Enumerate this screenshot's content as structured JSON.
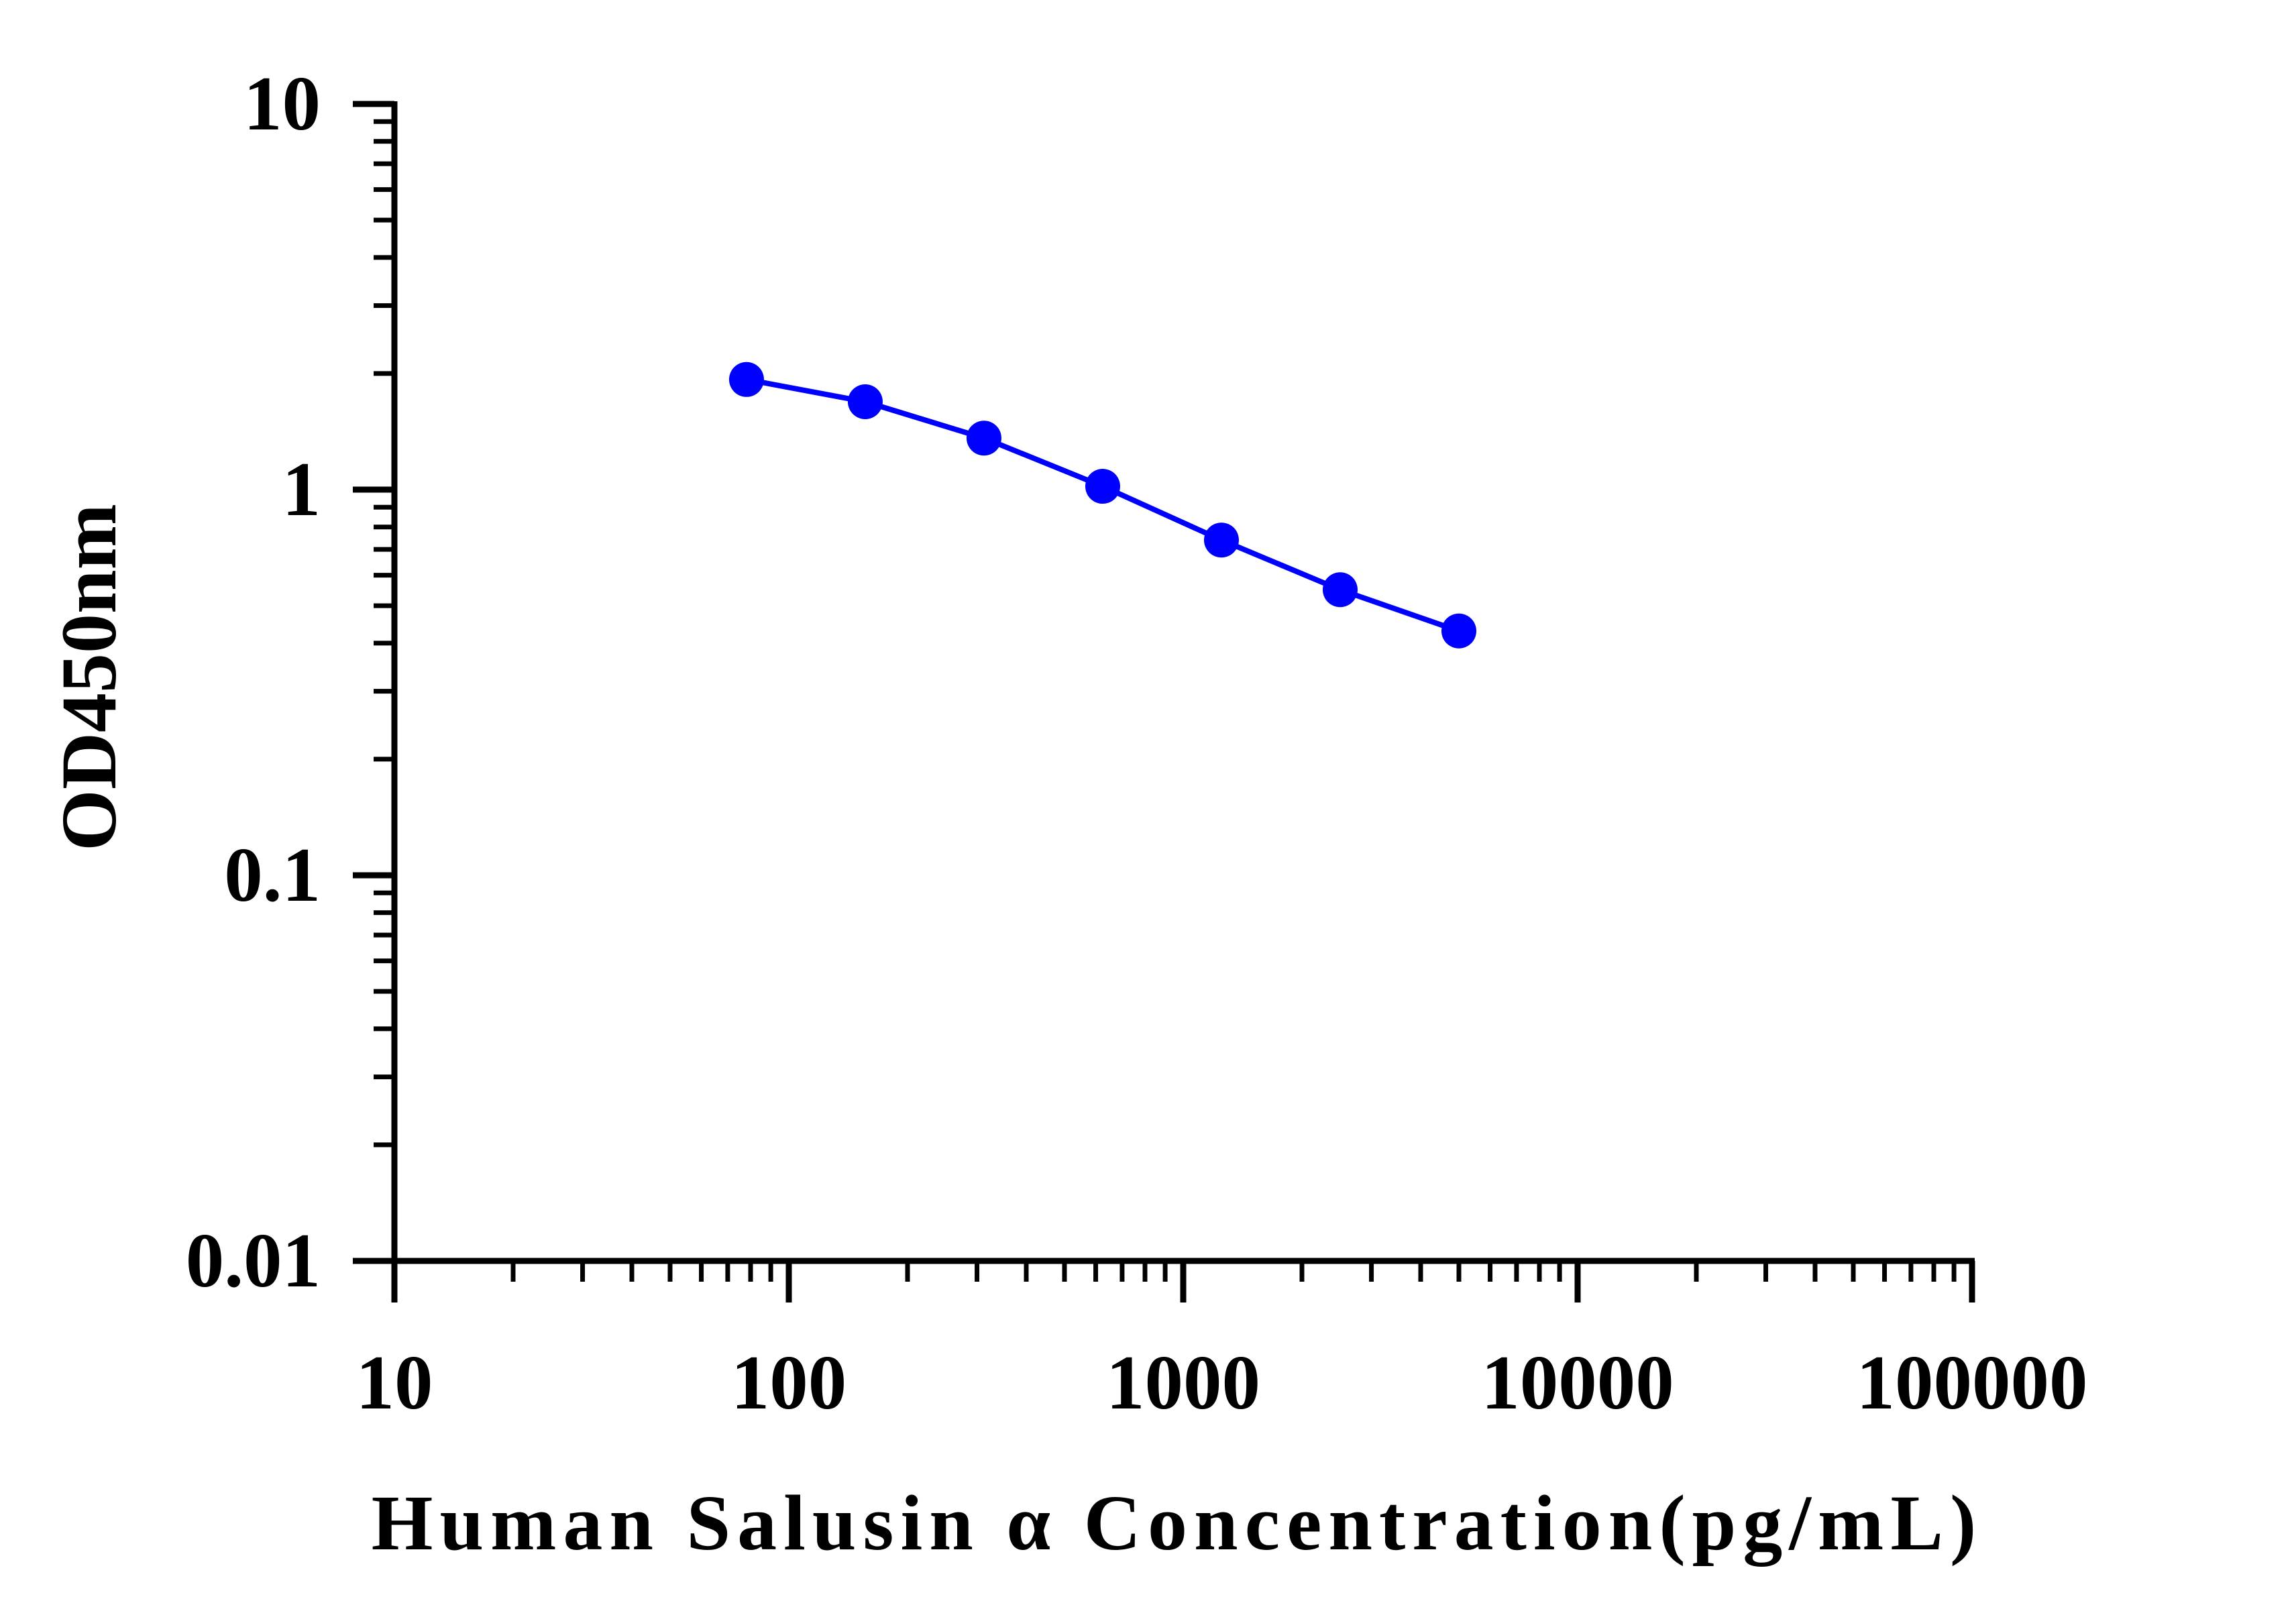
{
  "chart_data": {
    "type": "line",
    "title": "",
    "xlabel": "Human Salusin α Concentration(pg/mL)",
    "ylabel": "OD450nm",
    "x_scale": "log",
    "y_scale": "log",
    "xlim": [
      10,
      100000
    ],
    "ylim": [
      0.01,
      10
    ],
    "x_ticks": [
      10,
      100,
      1000,
      10000,
      100000
    ],
    "x_tick_labels": [
      "10",
      "100",
      "1000",
      "10000",
      "100000"
    ],
    "y_ticks": [
      0.01,
      0.1,
      1,
      10
    ],
    "y_tick_labels": [
      "0.01",
      "0.1",
      "1",
      "10"
    ],
    "grid": false,
    "legend": "none",
    "series": [
      {
        "color": "#0000ff",
        "x": [
          78.125,
          156.25,
          312.5,
          625,
          1250,
          2500,
          5000
        ],
        "y": [
          1.93,
          1.69,
          1.36,
          1.02,
          0.74,
          0.55,
          0.43
        ]
      }
    ]
  }
}
